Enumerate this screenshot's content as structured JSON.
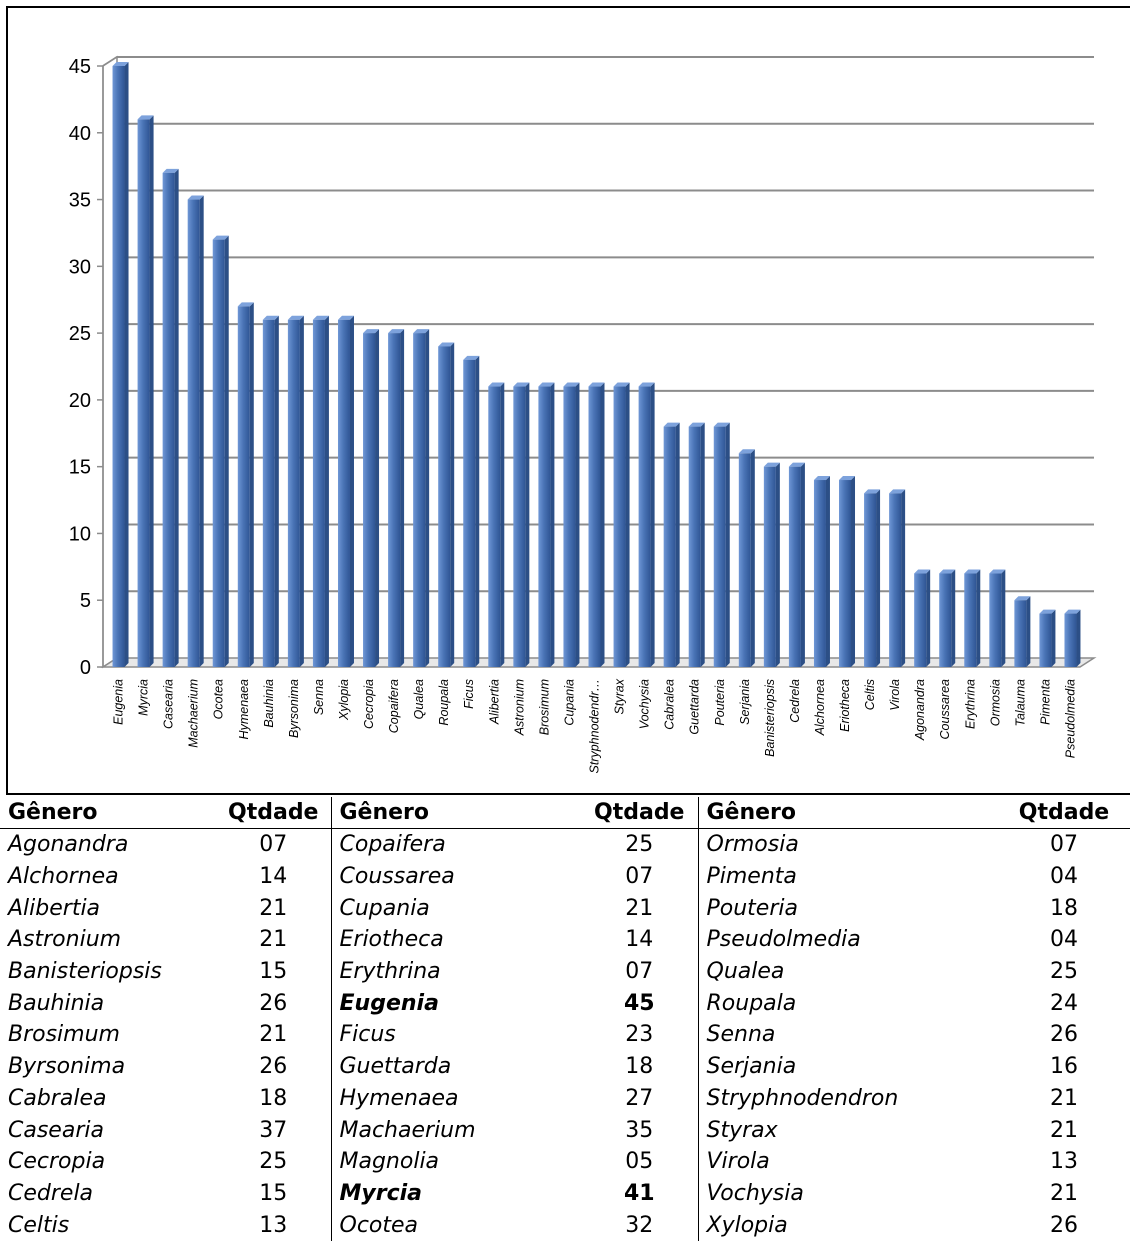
{
  "chart_data": {
    "type": "bar",
    "categories": [
      "Eugenia",
      "Myrcia",
      "Casearia",
      "Machaerium",
      "Ocotea",
      "Hymenaea",
      "Bauhinia",
      "Byrsonima",
      "Senna",
      "Xylopia",
      "Cecropia",
      "Copaifera",
      "Qualea",
      "Roupala",
      "Ficus",
      "Alibertia",
      "Astronium",
      "Brosimum",
      "Cupania",
      "Stryphnodendr…",
      "Styrax",
      "Vochysia",
      "Cabralea",
      "Guettarda",
      "Pouteria",
      "Serjania",
      "Banisteriopsis",
      "Cedrela",
      "Alchornea",
      "Eriotheca",
      "Celtis",
      "Virola",
      "Agonandra",
      "Coussarea",
      "Erythrina",
      "Ormosia",
      "Talauma",
      "Pimenta",
      "Pseudolmedia"
    ],
    "values": [
      45,
      41,
      37,
      35,
      32,
      27,
      26,
      26,
      26,
      26,
      25,
      25,
      25,
      24,
      23,
      21,
      21,
      21,
      21,
      21,
      21,
      21,
      18,
      18,
      18,
      16,
      15,
      15,
      14,
      14,
      13,
      13,
      7,
      7,
      7,
      7,
      5,
      4,
      4
    ],
    "y_ticks": [
      "0",
      "5",
      "10",
      "15",
      "20",
      "25",
      "30",
      "35",
      "40",
      "45"
    ],
    "ylim": [
      0,
      45
    ],
    "grid": true,
    "bar_color": "#4a74b6",
    "legend": "none"
  },
  "table": {
    "header_genus": "Gênero",
    "header_qty": "Qtdade",
    "rows": [
      [
        {
          "g": "Agonandra",
          "q": "07"
        },
        {
          "g": "Copaifera",
          "q": "25"
        },
        {
          "g": "Ormosia",
          "q": "07"
        }
      ],
      [
        {
          "g": "Alchornea",
          "q": "14"
        },
        {
          "g": "Coussarea",
          "q": "07"
        },
        {
          "g": "Pimenta",
          "q": "04"
        }
      ],
      [
        {
          "g": "Alibertia",
          "q": "21"
        },
        {
          "g": "Cupania",
          "q": "21"
        },
        {
          "g": "Pouteria",
          "q": "18"
        }
      ],
      [
        {
          "g": "Astronium",
          "q": "21"
        },
        {
          "g": "Eriotheca",
          "q": "14"
        },
        {
          "g": "Pseudolmedia",
          "q": "04"
        }
      ],
      [
        {
          "g": "Banisteriopsis",
          "q": "15"
        },
        {
          "g": "Erythrina",
          "q": "07"
        },
        {
          "g": "Qualea",
          "q": "25"
        }
      ],
      [
        {
          "g": "Bauhinia",
          "q": "26"
        },
        {
          "g": "Eugenia",
          "q": "45",
          "bold": true
        },
        {
          "g": "Roupala",
          "q": "24"
        }
      ],
      [
        {
          "g": "Brosimum",
          "q": "21"
        },
        {
          "g": "Ficus",
          "q": "23"
        },
        {
          "g": "Senna",
          "q": "26"
        }
      ],
      [
        {
          "g": "Byrsonima",
          "q": "26"
        },
        {
          "g": "Guettarda",
          "q": "18"
        },
        {
          "g": "Serjania",
          "q": "16"
        }
      ],
      [
        {
          "g": "Cabralea",
          "q": "18"
        },
        {
          "g": "Hymenaea",
          "q": "27"
        },
        {
          "g": "Stryphnodendron",
          "q": "21"
        }
      ],
      [
        {
          "g": "Casearia",
          "q": "37"
        },
        {
          "g": "Machaerium",
          "q": "35"
        },
        {
          "g": "Styrax",
          "q": "21"
        }
      ],
      [
        {
          "g": "Cecropia",
          "q": "25"
        },
        {
          "g": "Magnolia",
          "q": "05"
        },
        {
          "g": "Virola",
          "q": "13"
        }
      ],
      [
        {
          "g": "Cedrela",
          "q": "15"
        },
        {
          "g": "Myrcia",
          "q": "41",
          "bold": true
        },
        {
          "g": "Vochysia",
          "q": "21"
        }
      ],
      [
        {
          "g": "Celtis",
          "q": "13"
        },
        {
          "g": "Ocotea",
          "q": "32"
        },
        {
          "g": "Xylopia",
          "q": "26"
        }
      ]
    ]
  }
}
